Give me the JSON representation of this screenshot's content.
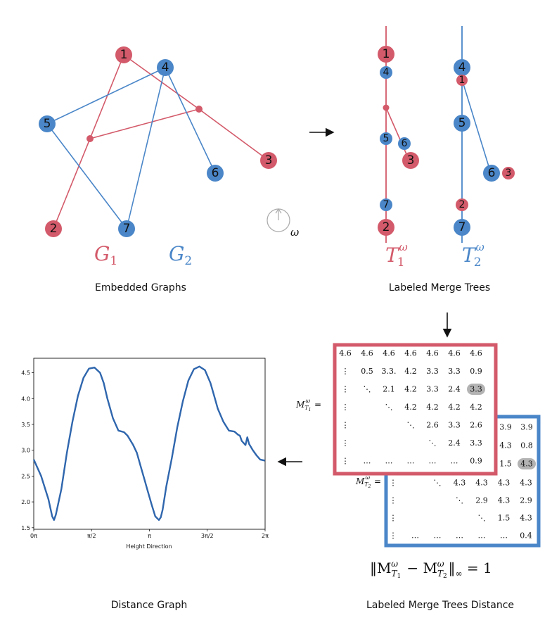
{
  "panels": {
    "embedded": {
      "caption": "Embedded Graphs",
      "g1_label": "G",
      "g1_sub": "1",
      "g2_label": "G",
      "g2_sub": "2",
      "omega": "ω",
      "nodes": [
        {
          "id": "1",
          "color": "red"
        },
        {
          "id": "2",
          "color": "red"
        },
        {
          "id": "3",
          "color": "red"
        },
        {
          "id": "4",
          "color": "blue"
        },
        {
          "id": "5",
          "color": "blue"
        },
        {
          "id": "6",
          "color": "blue"
        },
        {
          "id": "7",
          "color": "blue"
        }
      ]
    },
    "merge_trees": {
      "caption": "Labeled Merge Trees",
      "t1_label": "T",
      "t1_sub": "1",
      "t1_sup": "ω",
      "t2_label": "T",
      "t2_sub": "2",
      "t2_sup": "ω",
      "tree1_labels": [
        "1",
        "4",
        "5",
        "6",
        "3",
        "7",
        "2"
      ],
      "tree2_labels": [
        "4",
        "1",
        "5",
        "6",
        "3",
        "2",
        "7"
      ]
    },
    "distance_matrices": {
      "caption": "Labeled Merge Trees Distance",
      "m1_label": "M",
      "m1_sub": "T",
      "m1_subsub": "1",
      "m1_sup": "ω",
      "eq": "=",
      "m2_label": "M",
      "m2_sub": "T",
      "m2_subsub": "2",
      "m2_sup": "ω",
      "m1_rows": [
        [
          "4.6",
          "4.6",
          "4.6",
          "4.6",
          "4.6",
          "4.6",
          "4.6"
        ],
        [
          "⋮",
          "0.5",
          "3.3.",
          "4.2",
          "3.3",
          "3.3",
          "0.9"
        ],
        [
          "⋮",
          "⋱",
          "2.1",
          "4.2",
          "3.3",
          "2.4",
          "3.3"
        ],
        [
          "⋮",
          "",
          "⋱",
          "4.2",
          "4.2",
          "4.2",
          "4.2"
        ],
        [
          "⋮",
          "",
          "",
          "⋱",
          "2.6",
          "3.3",
          "2.6"
        ],
        [
          "⋮",
          "",
          "",
          "",
          "⋱",
          "2.4",
          "3.3"
        ],
        [
          "⋮",
          "…",
          "…",
          "…",
          "…",
          "…",
          "0.9"
        ]
      ],
      "m2_visible_right": [
        [
          "3.9",
          "3.9"
        ],
        [
          "4.3",
          "0.8"
        ],
        [
          "1.5",
          "4.3"
        ]
      ],
      "m2_rows_lower": [
        [
          "⋮",
          "",
          "⋱",
          "4.3",
          "4.3",
          "4.3",
          "4.3"
        ],
        [
          "⋮",
          "",
          "",
          "⋱",
          "2.9",
          "4.3",
          "2.9"
        ],
        [
          "⋮",
          "",
          "",
          "",
          "⋱",
          "1.5",
          "4.3"
        ],
        [
          "⋮",
          "…",
          "…",
          "…",
          "…",
          "…",
          "0.4"
        ]
      ],
      "formula": "‖M",
      "formula_t1": "T",
      "formula_t1_sub": "1",
      "formula_sup1": "ω",
      "formula_minus": " − M",
      "formula_t2": "T",
      "formula_t2_sub": "2",
      "formula_sup2": "ω",
      "formula_end": "‖",
      "formula_inf": "∞",
      "formula_rhs": " = 1"
    },
    "distance_graph": {
      "caption": "Distance Graph"
    }
  },
  "colors": {
    "red": "#d35a6a",
    "blue": "#4a86c8",
    "line": "#2f66ad",
    "highlight": "#b3b3b3"
  },
  "chart_data": {
    "type": "line",
    "xlabel": "Height Direction",
    "ylabel": "",
    "x_tick_labels": [
      "0π",
      "π/2",
      "π",
      "3π/2",
      "2π"
    ],
    "x_tick_values": [
      0,
      1.5708,
      3.1416,
      4.7124,
      6.2832
    ],
    "y_tick_labels": [
      "1.5",
      "2.0",
      "2.5",
      "3.0",
      "3.5",
      "4.0",
      "4.5"
    ],
    "y_tick_values": [
      1.5,
      2.0,
      2.5,
      3.0,
      3.5,
      4.0,
      4.5
    ],
    "xlim": [
      0,
      6.2832
    ],
    "ylim": [
      1.47,
      4.78
    ],
    "series": [
      {
        "x": [
          0,
          0.2,
          0.4,
          0.5,
          0.55,
          0.6,
          0.75,
          0.9,
          1.05,
          1.2,
          1.35,
          1.5,
          1.65,
          1.8,
          1.9,
          2.0,
          2.15,
          2.3,
          2.45,
          2.55,
          2.6,
          2.7,
          2.8,
          2.9,
          3.0,
          3.1,
          3.2,
          3.3,
          3.4,
          3.45,
          3.5,
          3.6,
          3.75,
          3.9,
          4.05,
          4.2,
          4.35,
          4.5,
          4.65,
          4.8,
          4.9,
          5.0,
          5.15,
          5.3,
          5.45,
          5.55,
          5.6,
          5.65,
          5.75,
          5.8,
          5.85,
          5.95,
          6.05,
          6.15,
          6.28
        ],
        "y": [
          2.82,
          2.5,
          2.05,
          1.72,
          1.65,
          1.75,
          2.25,
          2.95,
          3.55,
          4.05,
          4.4,
          4.58,
          4.6,
          4.5,
          4.3,
          4.0,
          3.62,
          3.38,
          3.35,
          3.28,
          3.22,
          3.1,
          2.95,
          2.7,
          2.45,
          2.2,
          1.95,
          1.72,
          1.65,
          1.7,
          1.85,
          2.3,
          2.85,
          3.45,
          3.95,
          4.35,
          4.57,
          4.62,
          4.55,
          4.3,
          4.05,
          3.8,
          3.55,
          3.38,
          3.36,
          3.3,
          3.28,
          3.18,
          3.1,
          3.25,
          3.12,
          3.0,
          2.9,
          2.82,
          2.8
        ]
      }
    ]
  }
}
